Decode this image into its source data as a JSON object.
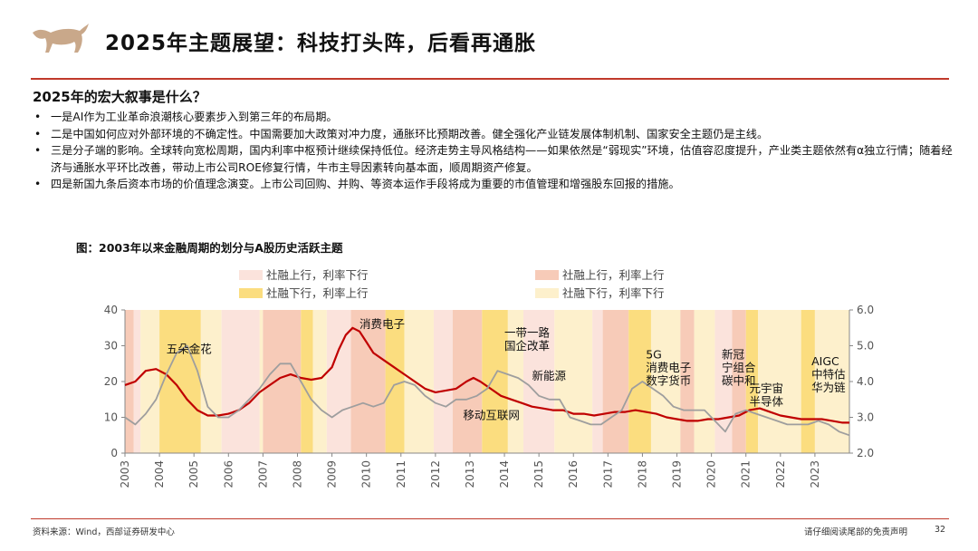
{
  "header": {
    "title": "2025年主题展望：科技打头阵，后看再通胀",
    "accent_color": "#c0392b",
    "logo_icon": "bull-logo-icon"
  },
  "question": "2025年的宏大叙事是什么？",
  "bullets": [
    "一是AI作为工业革命浪潮核心要素步入到第三年的布局期。",
    "二是中国如何应对外部环境的不确定性。中国需要加大政策对冲力度，通胀环比预期改善。健全强化产业链发展体制机制、国家安全主题仍是主线。",
    "三是分子端的影响。全球转向宽松周期，国内利率中枢预计继续保持低位。经济走势主导风格结构——如果依然是“弱现实”环境，估值容忍度提升，产业类主题依然有α独立行情；随着经济与通胀水平环比改善，带动上市公司ROE修复行情，牛市主导因素转向基本面，顺周期资产修复。",
    "四是新国九条后资本市场的价值理念演变。上市公司回购、并购、等资本运作手段将成为重要的市值管理和增强股东回报的措施。"
  ],
  "bullet_marker": "•",
  "figure_title": "图：2003年以来金融周期的划分与A股历史活跃主题",
  "footer": {
    "source": "资料来源：Wind，西部证券研发中心",
    "disclaimer": "请仔细阅读尾部的免责声明",
    "page": "32"
  },
  "chart_data": {
    "type": "line",
    "legend": [
      {
        "label": "社融上行，利率下行",
        "color": "#fbe3dc"
      },
      {
        "label": "社融上行，利率上行",
        "color": "#f7cbb8"
      },
      {
        "label": "社融下行，利率上行",
        "color": "#fbdd7f"
      },
      {
        "label": "社融下行，利率下行",
        "color": "#fdf0cc"
      }
    ],
    "legend_position": "top",
    "x_ticks": [
      "2003",
      "2004",
      "2005",
      "2006",
      "2007",
      "2008",
      "2009",
      "2010",
      "2011",
      "2012",
      "2013",
      "2014",
      "2015",
      "2016",
      "2017",
      "2018",
      "2019",
      "2020",
      "2021",
      "2022",
      "2023"
    ],
    "x_range": [
      2003.0,
      2024.0
    ],
    "y_left": {
      "ticks": [
        "0",
        "10",
        "20",
        "30",
        "40"
      ],
      "range": [
        0,
        40
      ]
    },
    "y_right": {
      "ticks": [
        "2.0",
        "3.0",
        "4.0",
        "5.0",
        "6.0"
      ],
      "range": [
        2.0,
        6.0
      ]
    },
    "regimes": [
      {
        "start": 2003.0,
        "end": 2003.25,
        "regime": 1
      },
      {
        "start": 2003.25,
        "end": 2003.45,
        "regime": 0
      },
      {
        "start": 2003.45,
        "end": 2004.0,
        "regime": 3
      },
      {
        "start": 2004.0,
        "end": 2005.2,
        "regime": 2
      },
      {
        "start": 2005.2,
        "end": 2005.8,
        "regime": 3
      },
      {
        "start": 2005.8,
        "end": 2006.9,
        "regime": 0
      },
      {
        "start": 2006.9,
        "end": 2007.0,
        "regime": 3
      },
      {
        "start": 2007.0,
        "end": 2008.1,
        "regime": 1
      },
      {
        "start": 2008.1,
        "end": 2008.45,
        "regime": 2
      },
      {
        "start": 2008.45,
        "end": 2008.85,
        "regime": 3
      },
      {
        "start": 2008.85,
        "end": 2009.55,
        "regime": 0
      },
      {
        "start": 2009.55,
        "end": 2010.55,
        "regime": 1
      },
      {
        "start": 2010.55,
        "end": 2011.1,
        "regime": 2
      },
      {
        "start": 2011.1,
        "end": 2011.95,
        "regime": 3
      },
      {
        "start": 2011.95,
        "end": 2012.5,
        "regime": 0
      },
      {
        "start": 2012.5,
        "end": 2013.35,
        "regime": 1
      },
      {
        "start": 2013.35,
        "end": 2014.1,
        "regime": 2
      },
      {
        "start": 2014.1,
        "end": 2014.55,
        "regime": 3
      },
      {
        "start": 2014.55,
        "end": 2015.45,
        "regime": 0
      },
      {
        "start": 2015.45,
        "end": 2016.55,
        "regime": 3
      },
      {
        "start": 2016.55,
        "end": 2016.85,
        "regime": 0
      },
      {
        "start": 2016.85,
        "end": 2017.6,
        "regime": 1
      },
      {
        "start": 2017.6,
        "end": 2018.25,
        "regime": 2
      },
      {
        "start": 2018.25,
        "end": 2019.1,
        "regime": 3
      },
      {
        "start": 2019.1,
        "end": 2019.5,
        "regime": 1
      },
      {
        "start": 2019.5,
        "end": 2020.1,
        "regime": 3
      },
      {
        "start": 2020.1,
        "end": 2020.6,
        "regime": 0
      },
      {
        "start": 2020.6,
        "end": 2021.0,
        "regime": 1
      },
      {
        "start": 2021.0,
        "end": 2021.35,
        "regime": 2
      },
      {
        "start": 2021.35,
        "end": 2022.6,
        "regime": 3
      },
      {
        "start": 2022.6,
        "end": 2023.0,
        "regime": 2
      },
      {
        "start": 2023.0,
        "end": 2024.0,
        "regime": 3
      }
    ],
    "series": [
      {
        "color": "#c00000",
        "axis": "left",
        "x": [
          2003.0,
          2003.3,
          2003.6,
          2003.9,
          2004.2,
          2004.5,
          2004.8,
          2005.1,
          2005.4,
          2005.7,
          2006.0,
          2006.3,
          2006.6,
          2006.9,
          2007.2,
          2007.5,
          2007.8,
          2008.1,
          2008.4,
          2008.7,
          2009.0,
          2009.2,
          2009.4,
          2009.6,
          2009.8,
          2010.0,
          2010.2,
          2010.5,
          2010.8,
          2011.1,
          2011.4,
          2011.7,
          2012.0,
          2012.3,
          2012.6,
          2012.9,
          2013.1,
          2013.3,
          2013.6,
          2013.9,
          2014.2,
          2014.5,
          2014.8,
          2015.1,
          2015.4,
          2015.7,
          2016.0,
          2016.3,
          2016.6,
          2016.9,
          2017.2,
          2017.5,
          2017.8,
          2018.1,
          2018.4,
          2018.7,
          2019.0,
          2019.3,
          2019.6,
          2019.9,
          2020.2,
          2020.5,
          2020.8,
          2021.1,
          2021.4,
          2021.7,
          2022.0,
          2022.3,
          2022.6,
          2022.9,
          2023.2,
          2023.5,
          2023.8,
          2024.0
        ],
        "y": [
          19,
          20,
          23,
          23.5,
          22,
          19,
          15,
          12,
          10.5,
          10.5,
          11,
          12,
          14,
          17,
          19,
          21,
          22,
          21,
          20.5,
          21,
          24,
          29,
          33,
          35,
          34,
          31,
          28,
          26,
          24,
          22,
          20,
          18,
          17,
          17.5,
          18,
          20,
          21,
          20,
          18,
          16,
          15,
          14,
          13,
          12.5,
          12,
          12,
          11,
          11,
          10.5,
          11,
          11.5,
          11.5,
          12,
          11.5,
          11,
          10,
          9.5,
          9,
          9,
          9.5,
          9.5,
          10,
          10.5,
          12,
          12.5,
          11.5,
          10.5,
          10,
          9.5,
          9.5,
          9.5,
          9,
          8.5,
          8.5
        ]
      },
      {
        "color": "#9e9e9e",
        "axis": "right",
        "x": [
          2003.0,
          2003.3,
          2003.6,
          2003.9,
          2004.2,
          2004.5,
          2004.8,
          2005.1,
          2005.4,
          2005.7,
          2006.0,
          2006.3,
          2006.6,
          2006.9,
          2007.2,
          2007.5,
          2007.8,
          2008.1,
          2008.4,
          2008.7,
          2009.0,
          2009.3,
          2009.6,
          2009.9,
          2010.2,
          2010.5,
          2010.8,
          2011.1,
          2011.4,
          2011.7,
          2012.0,
          2012.3,
          2012.6,
          2012.9,
          2013.2,
          2013.5,
          2013.8,
          2014.1,
          2014.4,
          2014.7,
          2015.0,
          2015.3,
          2015.6,
          2015.9,
          2016.2,
          2016.5,
          2016.8,
          2017.1,
          2017.4,
          2017.7,
          2018.0,
          2018.3,
          2018.6,
          2018.9,
          2019.2,
          2019.5,
          2019.8,
          2020.1,
          2020.4,
          2020.7,
          2021.0,
          2021.3,
          2021.6,
          2021.9,
          2022.2,
          2022.5,
          2022.8,
          2023.1,
          2023.4,
          2023.7,
          2024.0
        ],
        "y": [
          3.0,
          2.8,
          3.1,
          3.5,
          4.2,
          4.8,
          5.0,
          4.3,
          3.3,
          3.0,
          3.0,
          3.2,
          3.5,
          3.8,
          4.2,
          4.5,
          4.5,
          4.0,
          3.5,
          3.2,
          3.0,
          3.2,
          3.3,
          3.4,
          3.3,
          3.4,
          3.9,
          4.0,
          3.9,
          3.6,
          3.4,
          3.3,
          3.5,
          3.5,
          3.6,
          3.8,
          4.3,
          4.2,
          4.1,
          3.9,
          3.6,
          3.5,
          3.5,
          3.0,
          2.9,
          2.8,
          2.8,
          3.0,
          3.2,
          3.8,
          4.0,
          3.8,
          3.6,
          3.3,
          3.2,
          3.2,
          3.2,
          2.9,
          2.6,
          3.1,
          3.2,
          3.1,
          3.0,
          2.9,
          2.8,
          2.8,
          2.8,
          2.9,
          2.8,
          2.6,
          2.5
        ]
      }
    ],
    "annotations": [
      {
        "lines": [
          "五朵金花"
        ],
        "x": 2004.2,
        "y": 28
      },
      {
        "lines": [
          "消费电子"
        ],
        "x": 2009.8,
        "y": 35
      },
      {
        "lines": [
          "一带一路",
          "国企改革"
        ],
        "x": 2014.0,
        "y": 32.5
      },
      {
        "lines": [
          "新能源"
        ],
        "x": 2014.8,
        "y": 20.5
      },
      {
        "lines": [
          "移动互联网"
        ],
        "x": 2012.8,
        "y": 9.5
      },
      {
        "lines": [
          "5G",
          "消费电子",
          "数字货币"
        ],
        "x": 2018.1,
        "y": 26.5
      },
      {
        "lines": [
          "新冠",
          "宁组合",
          "碳中和"
        ],
        "x": 2020.3,
        "y": 26.5
      },
      {
        "lines": [
          "元宇宙",
          "半导体"
        ],
        "x": 2021.1,
        "y": 17.0
      },
      {
        "lines": [
          "AIGC",
          "中特估",
          "华为链"
        ],
        "x": 2022.9,
        "y": 24.5
      }
    ]
  }
}
